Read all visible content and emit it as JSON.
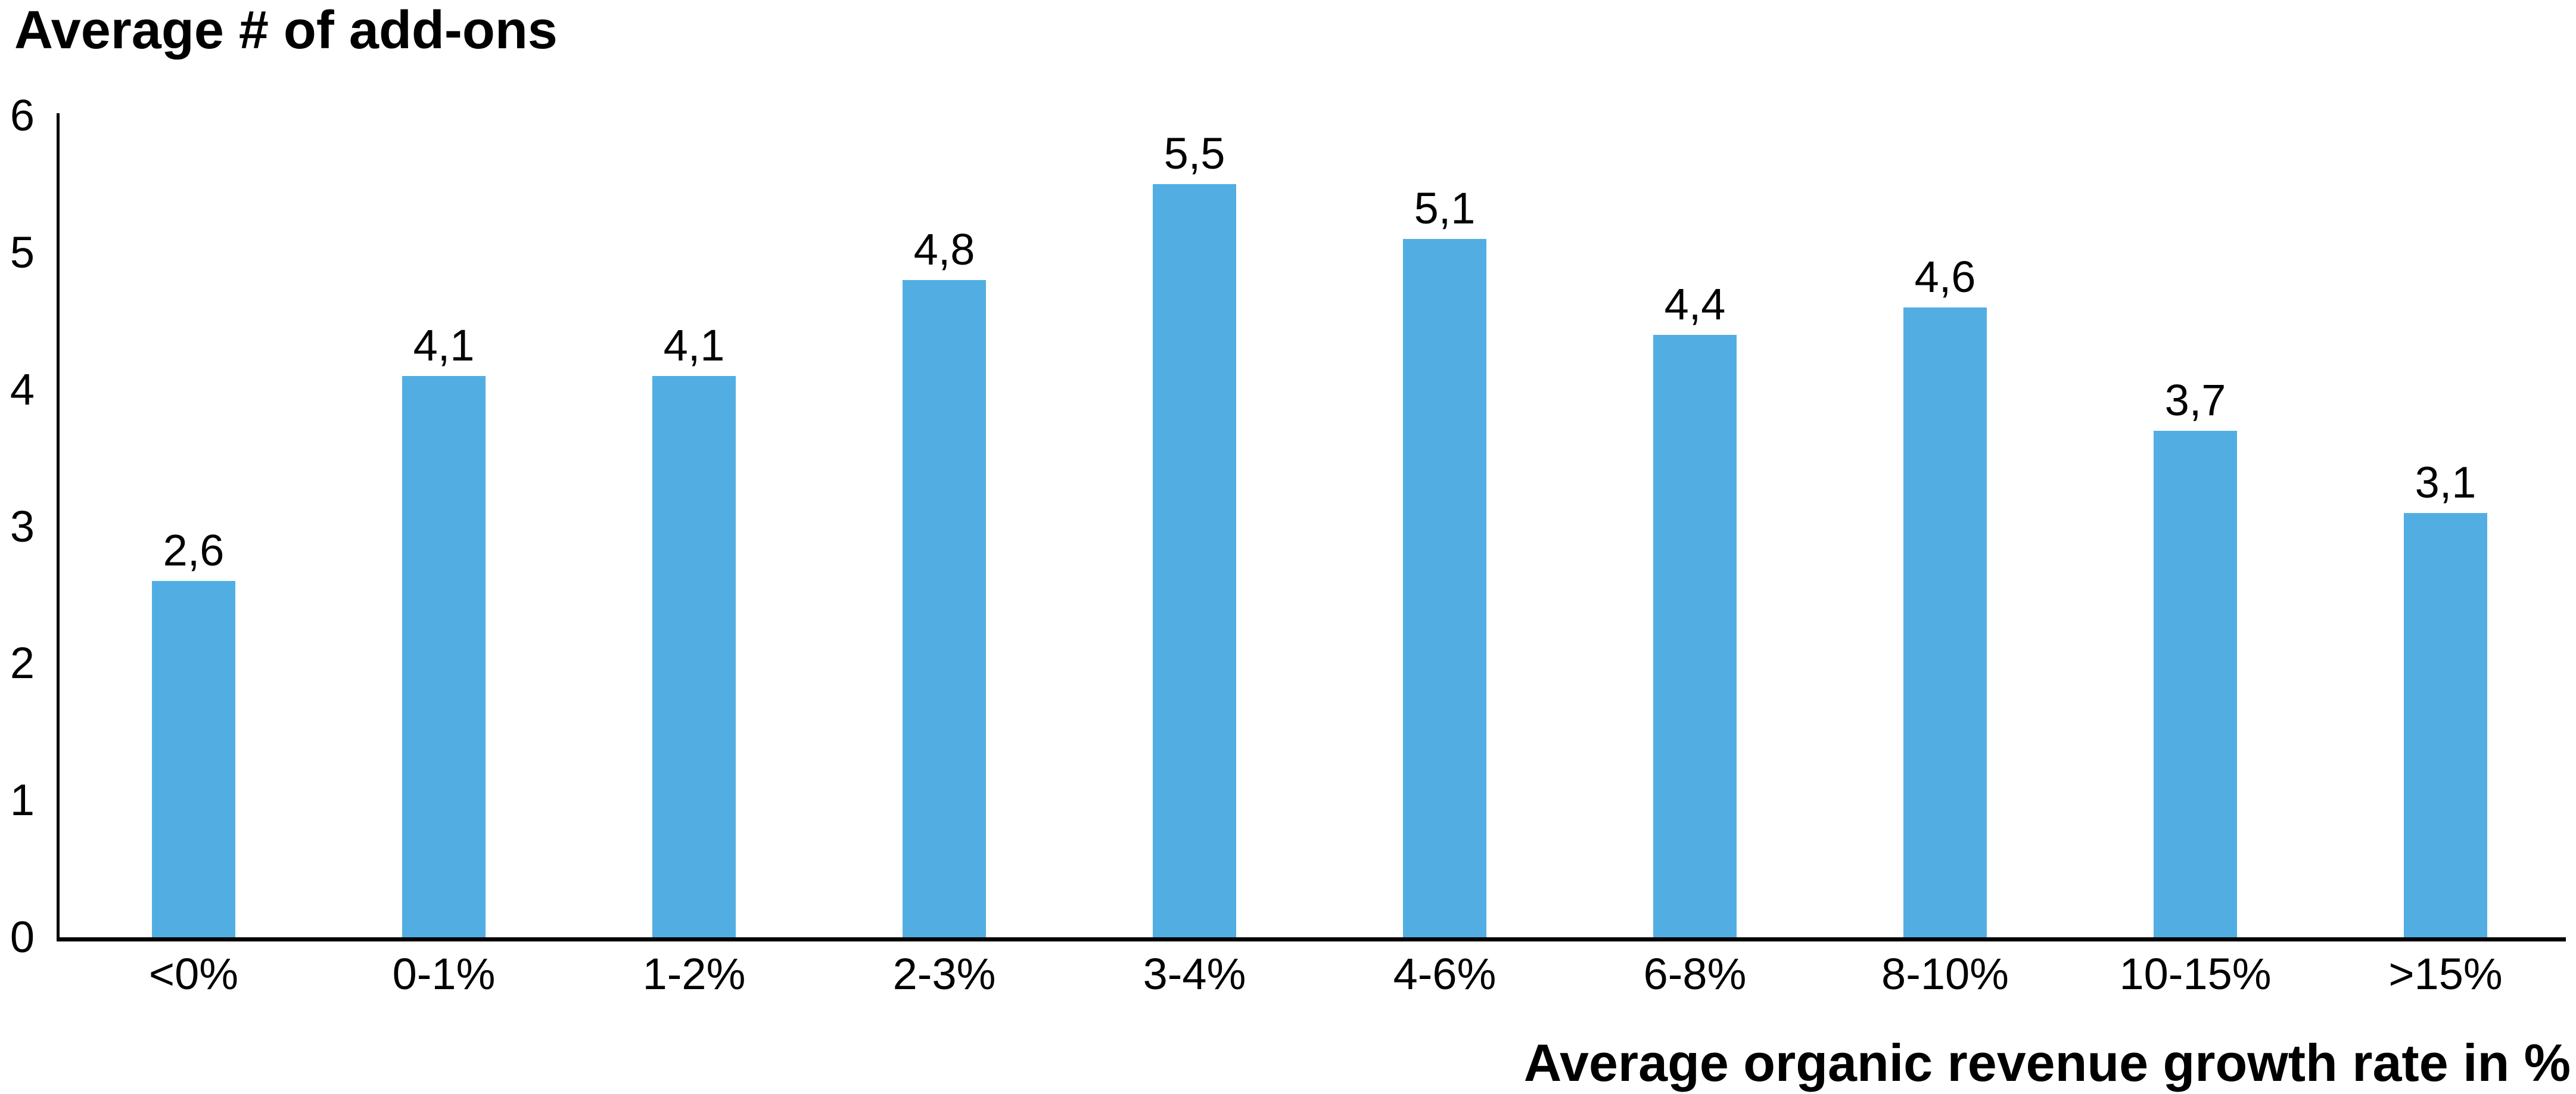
{
  "chart_data": {
    "type": "bar",
    "title": "Average # of add-ons",
    "xlabel": "Average organic revenue growth rate in %",
    "ylabel": "Average # of add-ons",
    "categories": [
      "<0%",
      "0-1%",
      "1-2%",
      "2-3%",
      "3-4%",
      "4-6%",
      "6-8%",
      "8-10%",
      "10-15%",
      ">15%"
    ],
    "values": [
      2.6,
      4.1,
      4.1,
      4.8,
      5.5,
      5.1,
      4.4,
      4.6,
      3.7,
      3.1
    ],
    "value_labels": [
      "2,6",
      "4,1",
      "4,1",
      "4,8",
      "5,5",
      "5,1",
      "4,4",
      "4,6",
      "3,7",
      "3,1"
    ],
    "y_ticks": [
      0,
      1,
      2,
      3,
      4,
      5,
      6
    ],
    "ylim": [
      0,
      6
    ],
    "grid": false,
    "legend": null,
    "decimal_separator": ",",
    "bar_color": "#52AEE2",
    "axis_color": "#000000",
    "text_color": "#000000",
    "background_color": "#FFFFFF"
  }
}
